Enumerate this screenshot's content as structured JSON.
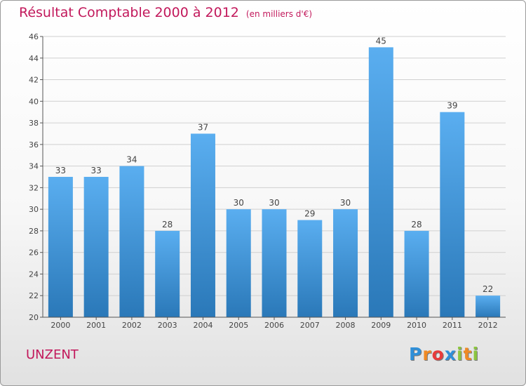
{
  "chart_data": {
    "type": "bar",
    "title": "Résultat Comptable 2000 à 2012",
    "subtitle": "(en milliers d'€)",
    "categories": [
      "2000",
      "2001",
      "2002",
      "2003",
      "2004",
      "2005",
      "2006",
      "2007",
      "2008",
      "2009",
      "2010",
      "2011",
      "2012"
    ],
    "values": [
      33,
      33,
      34,
      28,
      37,
      30,
      30,
      29,
      30,
      45,
      28,
      39,
      22
    ],
    "ylim": [
      20,
      46
    ],
    "yticks": [
      20,
      22,
      24,
      26,
      28,
      30,
      32,
      34,
      36,
      38,
      40,
      42,
      44,
      46
    ],
    "xlabel": "",
    "ylabel": "",
    "grid": true,
    "bar_color_top": "#5aaef0",
    "bar_color_bottom": "#2a78b8"
  },
  "place": "UNZENT",
  "logo": {
    "text": "Proxiti",
    "letters": [
      "P",
      "r",
      "o",
      "x",
      "i",
      "t",
      "i"
    ],
    "colors": [
      "#2f8fd8",
      "#f08a24",
      "#e83b3b",
      "#2f8fd8",
      "#8cc63f",
      "#f08a24",
      "#8cc63f"
    ]
  },
  "colors": {
    "title": "#c2185b",
    "grid": "#d0d0d0",
    "axis": "#555555"
  }
}
